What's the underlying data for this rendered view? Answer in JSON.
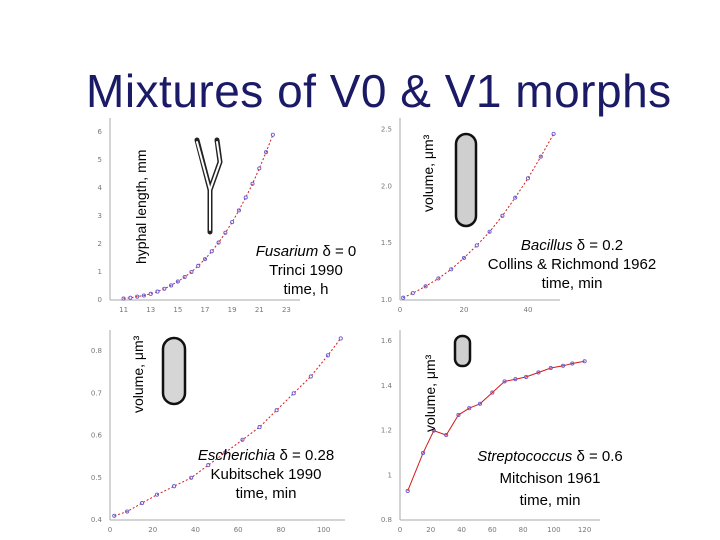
{
  "slide": {
    "title": "Mixtures of V0 & V1 morphs"
  },
  "chart_data": [
    {
      "type": "scatter",
      "id": "fusarium",
      "ylabel": "hyphal length, mm",
      "caption": {
        "organism": "Fusarium",
        "delta": "δ = 0",
        "reference": "Trinci 1990",
        "xlabel": "time, h"
      },
      "x_ticks": [
        "11",
        "13",
        "15",
        "17",
        "19",
        "21",
        "23"
      ],
      "y_ticks": [
        "0",
        "1",
        "2",
        "3",
        "4",
        "5",
        "6"
      ],
      "xlim": [
        10,
        24
      ],
      "ylim": [
        0,
        6.5
      ],
      "points": [
        [
          11,
          0.05
        ],
        [
          11.5,
          0.08
        ],
        [
          12,
          0.12
        ],
        [
          12.5,
          0.16
        ],
        [
          13,
          0.22
        ],
        [
          13.5,
          0.3
        ],
        [
          14,
          0.4
        ],
        [
          14.5,
          0.52
        ],
        [
          15,
          0.66
        ],
        [
          15.5,
          0.82
        ],
        [
          16,
          1.0
        ],
        [
          16.5,
          1.22
        ],
        [
          17,
          1.46
        ],
        [
          17.5,
          1.74
        ],
        [
          18,
          2.05
        ],
        [
          18.5,
          2.4
        ],
        [
          19,
          2.78
        ],
        [
          19.5,
          3.2
        ],
        [
          20,
          3.66
        ],
        [
          20.5,
          4.15
        ],
        [
          21,
          4.7
        ],
        [
          21.5,
          5.28
        ],
        [
          22,
          5.9
        ]
      ],
      "curve_color": "#d21a1a",
      "point_color": "#6a5acd"
    },
    {
      "type": "scatter",
      "id": "bacillus",
      "ylabel": "volume, μm³",
      "caption": {
        "organism": "Bacillus",
        "delta": "δ = 0.2",
        "reference": "Collins & Richmond 1962",
        "xlabel": "time, min"
      },
      "x_ticks": [
        "0",
        "20",
        "40"
      ],
      "y_ticks": [
        "1.0",
        "1.5",
        "2.0",
        "2.5"
      ],
      "xlim": [
        0,
        50
      ],
      "ylim": [
        1.0,
        2.6
      ],
      "points": [
        [
          1,
          1.02
        ],
        [
          4,
          1.06
        ],
        [
          8,
          1.12
        ],
        [
          12,
          1.19
        ],
        [
          16,
          1.27
        ],
        [
          20,
          1.37
        ],
        [
          24,
          1.48
        ],
        [
          28,
          1.6
        ],
        [
          32,
          1.74
        ],
        [
          36,
          1.9
        ],
        [
          40,
          2.07
        ],
        [
          44,
          2.26
        ],
        [
          48,
          2.46
        ]
      ],
      "curve_color": "#d21a1a",
      "point_color": "#6a5acd"
    },
    {
      "type": "scatter",
      "id": "escherichia",
      "ylabel": "volume, μm³",
      "caption": {
        "organism": "Escherichia",
        "delta": "δ = 0.28",
        "reference": "Kubitschek 1990",
        "xlabel": "time, min"
      },
      "x_ticks": [
        "0",
        "20",
        "40",
        "60",
        "80",
        "100"
      ],
      "y_ticks": [
        "0.4",
        "0.5",
        "0.6",
        "0.7",
        "0.8"
      ],
      "xlim": [
        0,
        110
      ],
      "ylim": [
        0.4,
        0.85
      ],
      "points": [
        [
          2,
          0.41
        ],
        [
          8,
          0.42
        ],
        [
          15,
          0.44
        ],
        [
          22,
          0.46
        ],
        [
          30,
          0.48
        ],
        [
          38,
          0.5
        ],
        [
          46,
          0.53
        ],
        [
          54,
          0.56
        ],
        [
          62,
          0.59
        ],
        [
          70,
          0.62
        ],
        [
          78,
          0.66
        ],
        [
          86,
          0.7
        ],
        [
          94,
          0.74
        ],
        [
          102,
          0.79
        ],
        [
          108,
          0.83
        ]
      ],
      "curve_color": "#d21a1a",
      "point_color": "#6a5acd"
    },
    {
      "type": "scatter",
      "id": "streptococcus",
      "ylabel": "volume, μm³",
      "caption": {
        "organism": "Streptococcus",
        "delta": "δ = 0.6",
        "reference": "Mitchison 1961",
        "xlabel": "time, min"
      },
      "x_ticks": [
        "0",
        "20",
        "40",
        "60",
        "80",
        "100",
        "120"
      ],
      "y_ticks": [
        "0.8",
        "1",
        "1.2",
        "1.4",
        "1.6"
      ],
      "xlim": [
        0,
        130
      ],
      "ylim": [
        0.8,
        1.65
      ],
      "points": [
        [
          5,
          0.93
        ],
        [
          15,
          1.1
        ],
        [
          22,
          1.2
        ],
        [
          30,
          1.18
        ],
        [
          38,
          1.27
        ],
        [
          45,
          1.3
        ],
        [
          52,
          1.32
        ],
        [
          60,
          1.37
        ],
        [
          68,
          1.42
        ],
        [
          75,
          1.43
        ],
        [
          82,
          1.44
        ],
        [
          90,
          1.46
        ],
        [
          98,
          1.48
        ],
        [
          106,
          1.49
        ],
        [
          112,
          1.5
        ],
        [
          120,
          1.51
        ]
      ],
      "curve_color": "#d21a1a",
      "point_color": "#6a5acd"
    }
  ]
}
